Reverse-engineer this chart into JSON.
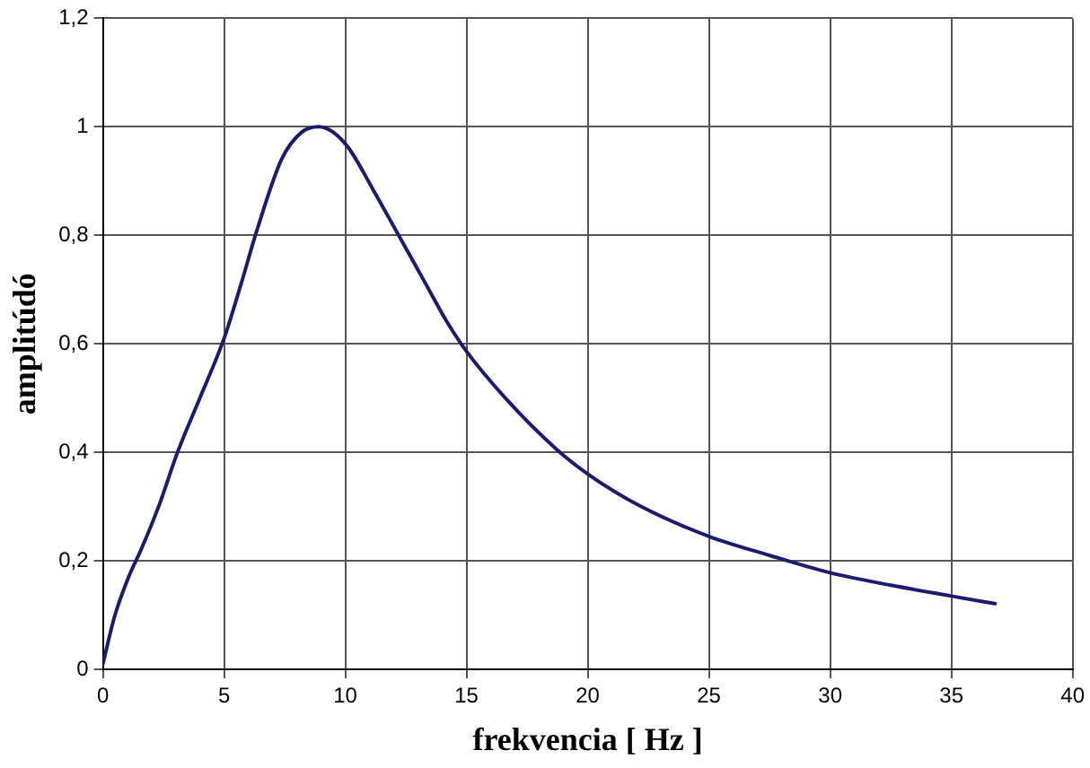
{
  "chart_data": {
    "type": "line",
    "xlabel": "frekvencia [ Hz ]",
    "ylabel": "amplitúdó",
    "x": [
      0,
      0.5,
      1.06,
      1.57,
      2.3,
      3.08,
      4,
      5,
      5.7,
      6.36,
      7.37,
      8.2,
      8.9,
      9.5,
      10.15,
      11.2,
      12.2,
      13.2,
      14.2,
      15,
      16.6,
      18.7,
      20,
      22.2,
      25,
      27.5,
      30,
      32.5,
      35,
      36.8
    ],
    "series": [
      {
        "color": "#1c1c6e",
        "values": [
          0.01,
          0.1,
          0.17,
          0.22,
          0.3,
          0.4,
          0.5,
          0.61,
          0.71,
          0.81,
          0.94,
          0.99,
          1.0,
          0.99,
          0.96,
          0.88,
          0.8,
          0.72,
          0.64,
          0.586,
          0.5,
          0.406,
          0.36,
          0.3,
          0.245,
          0.21,
          0.178,
          0.155,
          0.135,
          0.121
        ]
      }
    ],
    "xlim": [
      0,
      40
    ],
    "xticks": [
      0,
      5,
      10,
      15,
      20,
      25,
      30,
      35,
      40
    ],
    "ylim": [
      0,
      1.2
    ],
    "yticks": [
      0,
      {
        "value": 0.2,
        "label": "0,2"
      },
      {
        "value": 0.4,
        "label": "0,4"
      },
      {
        "value": 0.6,
        "label": "0,6"
      },
      {
        "value": 0.8,
        "label": "0,8"
      },
      1,
      {
        "value": 1.2,
        "label": "1,2"
      }
    ],
    "grid": true,
    "legend": false,
    "marker": "none",
    "line_style": "solid"
  }
}
